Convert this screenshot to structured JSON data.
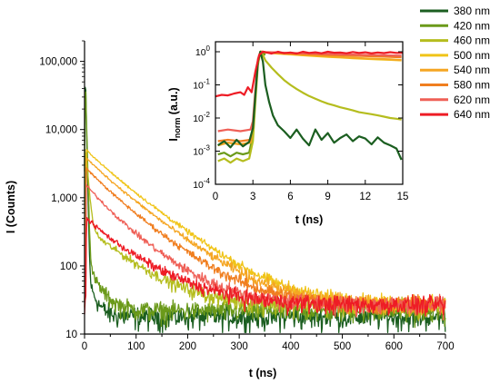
{
  "chart_data": [
    {
      "id": "main",
      "type": "line",
      "title": "",
      "xlabel": "t (ns)",
      "ylabel": "I (Counts)",
      "xlim": [
        0,
        700
      ],
      "ylim": [
        10,
        200000
      ],
      "yscale": "log",
      "xticks": [
        0,
        100,
        200,
        300,
        400,
        500,
        600,
        700
      ],
      "xtick_labels": [
        "0",
        "100",
        "200",
        "300",
        "400",
        "500",
        "600",
        "700"
      ],
      "yticks": [
        10,
        100,
        1000,
        10000,
        100000
      ],
      "ytick_labels": [
        "10",
        "100",
        "1,000",
        "10,000",
        "100,000"
      ],
      "grid": false,
      "legend_position": "right",
      "series": [
        {
          "name": "380 nm",
          "color": "#1b5e20",
          "peak_t": 1.5,
          "peak": 80000,
          "tau1": 1.2,
          "a2": 0.0008,
          "tau2": 14,
          "background": 18
        },
        {
          "name": "420 nm",
          "color": "#6b9a1a",
          "peak_t": 1.5,
          "peak": 65000,
          "tau1": 1.5,
          "a2": 0.0015,
          "tau2": 22,
          "background": 22
        },
        {
          "name": "460 nm",
          "color": "#b5bd1e",
          "peak_t": 2.5,
          "peak": 5500,
          "tau1": 4,
          "a2": 0.06,
          "tau2": 70,
          "background": 26
        },
        {
          "name": "500 nm",
          "color": "#f0c418",
          "peak_t": 3.5,
          "peak": 5000,
          "tau1": 30,
          "a2": 0.8,
          "tau2": 75,
          "background": 27
        },
        {
          "name": "540 nm",
          "color": "#f5a623",
          "peak_t": 3.5,
          "peak": 3800,
          "tau1": 30,
          "a2": 0.8,
          "tau2": 74,
          "background": 27
        },
        {
          "name": "580 nm",
          "color": "#f07e1f",
          "peak_t": 3.5,
          "peak": 2700,
          "tau1": 30,
          "a2": 0.75,
          "tau2": 72,
          "background": 27
        },
        {
          "name": "620 nm",
          "color": "#ef6057",
          "peak_t": 3.5,
          "peak": 1500,
          "tau1": 30,
          "a2": 0.7,
          "tau2": 68,
          "background": 27
        },
        {
          "name": "640 nm",
          "color": "#ee1c25",
          "peak_t": 4,
          "peak": 480,
          "tau1": 25,
          "a2": 0.8,
          "tau2": 78,
          "background": 27
        }
      ]
    },
    {
      "id": "inset",
      "type": "line",
      "title": "",
      "xlabel": "t (ns)",
      "ylabel_main": "I",
      "ylabel_sub": "norm",
      "ylabel_unit": " (a.u.)",
      "xlim": [
        0,
        15
      ],
      "ylim": [
        0.0001,
        2
      ],
      "yscale": "log",
      "xticks": [
        0,
        3,
        6,
        9,
        12,
        15
      ],
      "xtick_labels": [
        "0",
        "3",
        "6",
        "9",
        "12",
        "15"
      ],
      "yticks": [
        0.0001,
        0.001,
        0.01,
        0.1,
        1
      ],
      "ytick_mantissa": [
        "10",
        "10",
        "10",
        "10",
        "10"
      ],
      "ytick_exponents": [
        "-4",
        "-3",
        "-2",
        "-1",
        "0"
      ],
      "grid": false,
      "series": [
        {
          "name": "380 nm",
          "x": [
            0.2,
            0.7,
            1.2,
            1.7,
            2.2,
            2.7,
            3.0,
            3.2,
            3.4,
            3.6,
            3.8,
            4.0,
            4.3,
            4.6,
            5.0,
            5.5,
            6.0,
            6.5,
            7.0,
            7.5,
            8.0,
            8.5,
            9.0,
            9.5,
            10.0,
            10.5,
            11.0,
            11.5,
            12.0,
            12.5,
            13.0,
            13.5,
            14.0,
            14.5,
            14.9
          ],
          "y": [
            0.0015,
            0.002,
            0.0013,
            0.0022,
            0.0014,
            0.0019,
            0.005,
            0.05,
            0.5,
            1.0,
            0.5,
            0.1,
            0.03,
            0.012,
            0.006,
            0.004,
            0.0025,
            0.0045,
            0.0024,
            0.0015,
            0.0045,
            0.0022,
            0.0035,
            0.0018,
            0.0025,
            0.0032,
            0.002,
            0.0028,
            0.0024,
            0.0016,
            0.0026,
            0.0018,
            0.0015,
            0.0012,
            0.00055
          ]
        },
        {
          "name": "420 nm",
          "x": [
            0.2,
            0.7,
            1.2,
            1.7,
            2.2,
            2.7,
            3.0,
            3.2,
            3.4,
            3.6,
            3.8,
            4.0
          ],
          "y": [
            0.0008,
            0.0009,
            0.0007,
            0.0009,
            0.0008,
            0.0009,
            0.003,
            0.05,
            0.5,
            1.0,
            0.9,
            0.8
          ]
        },
        {
          "name": "460 nm",
          "x": [
            0.2,
            0.7,
            1.2,
            1.7,
            2.2,
            2.7,
            3.0,
            3.2,
            3.4,
            3.6,
            3.8,
            4.0,
            4.5,
            5.0,
            5.5,
            6.0,
            6.5,
            7.0,
            7.5,
            8.0,
            8.5,
            9.0,
            9.5,
            10.0,
            10.5,
            11.0,
            11.5,
            12.0,
            12.5,
            13.0,
            13.5,
            14.0,
            14.5,
            14.9
          ],
          "y": [
            0.0005,
            0.0006,
            0.00045,
            0.0006,
            0.0005,
            0.0006,
            0.002,
            0.03,
            0.4,
            1.0,
            0.8,
            0.55,
            0.33,
            0.21,
            0.14,
            0.1,
            0.075,
            0.058,
            0.046,
            0.038,
            0.032,
            0.027,
            0.024,
            0.021,
            0.019,
            0.017,
            0.015,
            0.014,
            0.013,
            0.012,
            0.011,
            0.01,
            0.0095,
            0.009
          ]
        },
        {
          "name": "500 nm",
          "x": [
            0.2,
            1.0,
            2.0,
            2.8,
            3.0,
            3.2,
            3.4,
            3.6,
            3.8,
            4.0,
            5.0,
            6.0,
            7.0,
            8.0,
            9.0,
            10.0,
            11.0,
            12.0,
            13.0,
            14.0,
            14.9
          ],
          "y": [
            0.0015,
            0.0018,
            0.0016,
            0.0018,
            0.004,
            0.05,
            0.5,
            1.0,
            1.0,
            0.95,
            0.88,
            0.83,
            0.78,
            0.74,
            0.7,
            0.67,
            0.64,
            0.61,
            0.59,
            0.57,
            0.55
          ]
        },
        {
          "name": "540 nm",
          "x": [
            0.2,
            1.0,
            2.0,
            2.8,
            3.0,
            3.2,
            3.4,
            3.6,
            3.8,
            4.0,
            5.0,
            6.0,
            7.0,
            8.0,
            9.0,
            10.0,
            11.0,
            12.0,
            13.0,
            14.0,
            14.9
          ],
          "y": [
            0.0015,
            0.0018,
            0.0016,
            0.0018,
            0.004,
            0.05,
            0.5,
            1.0,
            1.0,
            0.96,
            0.9,
            0.85,
            0.8,
            0.76,
            0.72,
            0.69,
            0.66,
            0.63,
            0.61,
            0.59,
            0.56
          ]
        },
        {
          "name": "580 nm",
          "x": [
            0.2,
            1.0,
            2.0,
            2.8,
            3.0,
            3.2,
            3.4,
            3.6,
            3.8,
            4.0,
            5.0,
            6.0,
            7.0,
            8.0,
            9.0,
            10.0,
            11.0,
            12.0,
            13.0,
            14.0,
            14.9
          ],
          "y": [
            0.002,
            0.0022,
            0.002,
            0.0022,
            0.005,
            0.05,
            0.5,
            1.0,
            1.0,
            0.97,
            0.93,
            0.89,
            0.86,
            0.83,
            0.8,
            0.78,
            0.76,
            0.74,
            0.72,
            0.7,
            0.68
          ]
        },
        {
          "name": "620 nm",
          "x": [
            0.2,
            1.0,
            2.0,
            2.8,
            3.0,
            3.2,
            3.4,
            3.6,
            3.8,
            4.0,
            5.0,
            6.0,
            7.0,
            8.0,
            9.0,
            10.0,
            11.0,
            12.0,
            13.0,
            14.0,
            14.9
          ],
          "y": [
            0.004,
            0.0045,
            0.004,
            0.0045,
            0.008,
            0.07,
            0.6,
            1.0,
            1.0,
            0.98,
            0.95,
            0.92,
            0.9,
            0.88,
            0.86,
            0.84,
            0.82,
            0.8,
            0.79,
            0.77,
            0.76
          ]
        },
        {
          "name": "640 nm",
          "x": [
            0.0,
            0.5,
            1.0,
            1.5,
            2.0,
            2.3,
            2.6,
            2.9,
            3.2,
            3.5,
            3.8,
            4.1,
            4.5,
            5.0,
            5.5,
            6.0,
            6.5,
            7.0,
            7.5,
            8.0,
            8.5,
            9.0,
            9.5,
            10.0,
            10.5,
            11.0,
            11.5,
            12.0,
            12.5,
            13.0,
            13.5,
            14.0,
            14.5,
            15.0
          ],
          "y": [
            0.045,
            0.05,
            0.048,
            0.055,
            0.06,
            0.05,
            0.085,
            0.06,
            0.25,
            0.8,
            1.0,
            0.95,
            0.88,
            1.0,
            0.9,
            0.95,
            0.88,
            1.0,
            0.92,
            0.96,
            0.9,
            1.0,
            0.93,
            0.95,
            0.9,
            0.98,
            0.92,
            0.96,
            0.9,
            0.95,
            0.91,
            0.97,
            0.92,
            0.93
          ]
        }
      ]
    }
  ]
}
